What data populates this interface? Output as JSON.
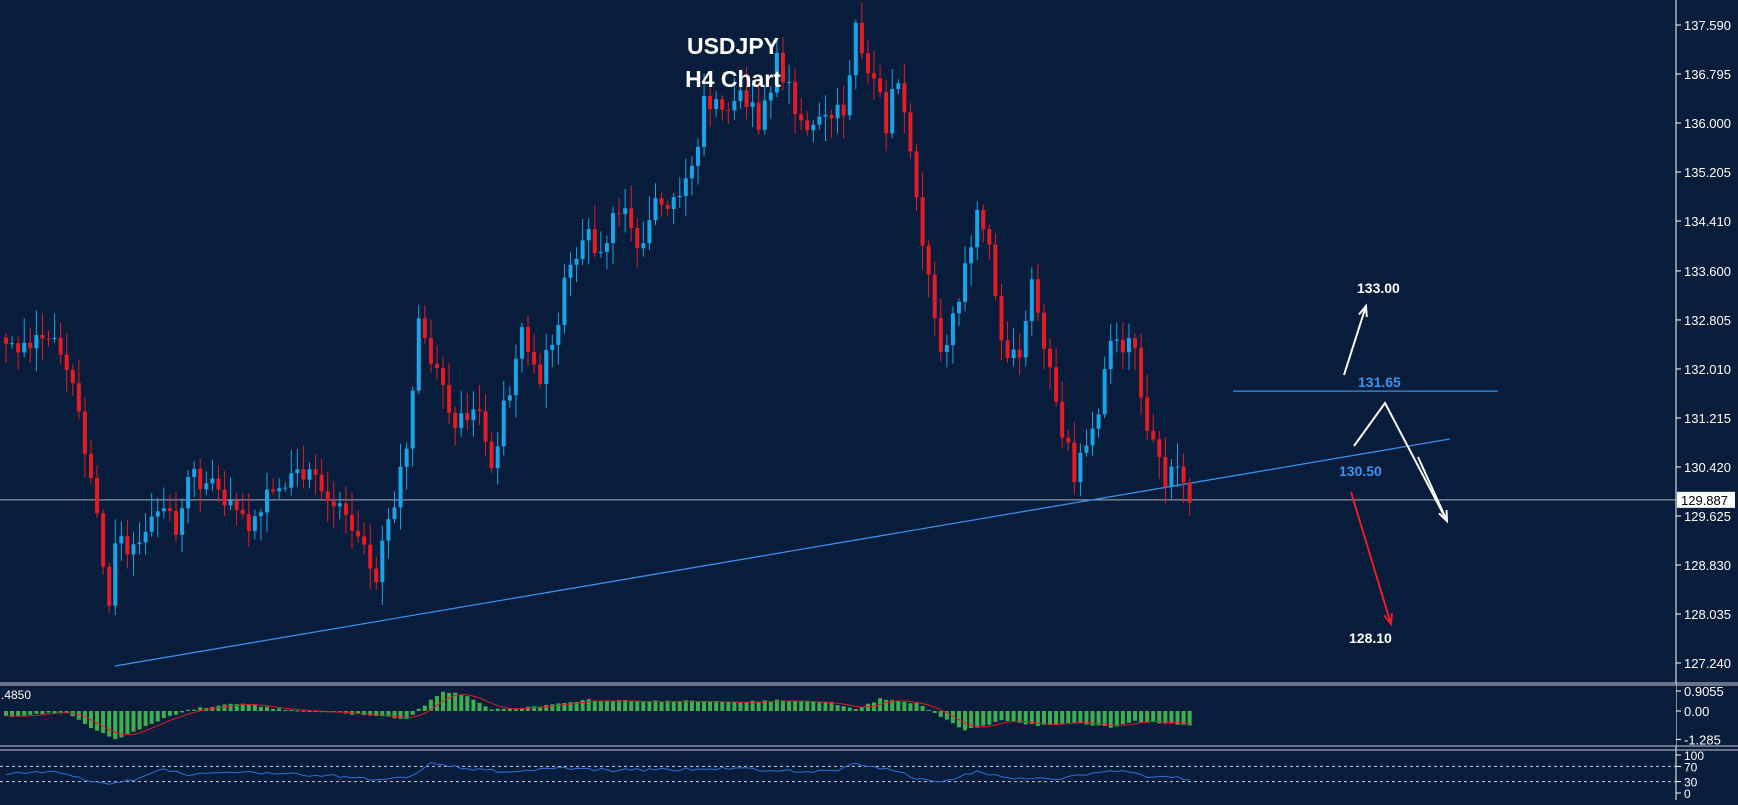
{
  "chart_data": {
    "type": "candlestick",
    "title": "USDJPY",
    "subtitle": "H4 Chart",
    "colors": {
      "background": "#071d3b",
      "bull": "#1aa3e6",
      "bear": "#e51c23",
      "trendline": "#3d8ee8",
      "annotation": "#ffffff",
      "annotation_bear": "#e81f26",
      "level_text": "#3d94f0",
      "macd_hist": "#3cb050",
      "macd_signal": "#e51c23",
      "rsi": "#3070d8",
      "axis_text": "#ffffff"
    },
    "price_axis": {
      "ticks": [
        "137.590",
        "136.795",
        "136.000",
        "135.205",
        "134.410",
        "133.600",
        "132.805",
        "132.010",
        "131.215",
        "130.420",
        "129.625",
        "128.830",
        "128.035",
        "127.240"
      ],
      "current_price": "129.887",
      "ylim": [
        126.8,
        138.2
      ]
    },
    "close_path": [
      [
        0,
        132.3
      ],
      [
        8,
        132.7
      ],
      [
        12,
        131.4
      ],
      [
        15,
        129.6
      ],
      [
        17,
        128.3
      ],
      [
        18,
        129.2
      ],
      [
        22,
        129.0
      ],
      [
        26,
        129.9
      ],
      [
        28,
        129.3
      ],
      [
        30,
        130.4
      ],
      [
        35,
        130.0
      ],
      [
        40,
        129.6
      ],
      [
        45,
        130.2
      ],
      [
        50,
        130.3
      ],
      [
        54,
        129.9
      ],
      [
        58,
        129.3
      ],
      [
        61,
        128.7
      ],
      [
        63,
        129.4
      ],
      [
        66,
        130.8
      ],
      [
        68,
        132.8
      ],
      [
        71,
        132.0
      ],
      [
        74,
        131.0
      ],
      [
        77,
        131.5
      ],
      [
        80,
        130.6
      ],
      [
        82,
        131.3
      ],
      [
        85,
        132.7
      ],
      [
        88,
        131.8
      ],
      [
        92,
        133.3
      ],
      [
        95,
        134.2
      ],
      [
        98,
        133.8
      ],
      [
        101,
        134.6
      ],
      [
        104,
        134.0
      ],
      [
        107,
        134.7
      ],
      [
        110,
        134.6
      ],
      [
        113,
        135.2
      ],
      [
        115,
        136.4
      ],
      [
        118,
        136.1
      ],
      [
        121,
        136.7
      ],
      [
        124,
        135.9
      ],
      [
        127,
        137.0
      ],
      [
        130,
        136.2
      ],
      [
        133,
        136.0
      ],
      [
        136,
        135.9
      ],
      [
        138,
        136.3
      ],
      [
        140,
        137.6
      ],
      [
        143,
        136.6
      ],
      [
        145,
        136.0
      ],
      [
        147,
        136.7
      ],
      [
        149,
        135.4
      ],
      [
        150,
        134.8
      ],
      [
        152,
        133.6
      ],
      [
        154,
        132.2
      ],
      [
        157,
        133.2
      ],
      [
        160,
        134.4
      ],
      [
        162,
        134.1
      ],
      [
        164,
        132.4
      ],
      [
        167,
        132.2
      ],
      [
        169,
        133.4
      ],
      [
        171,
        132.3
      ],
      [
        174,
        130.9
      ],
      [
        176,
        130.3
      ],
      [
        178,
        130.9
      ],
      [
        180,
        131.3
      ],
      [
        182,
        132.3
      ],
      [
        185,
        132.6
      ],
      [
        188,
        131.2
      ],
      [
        191,
        130.2
      ],
      [
        193,
        130.6
      ],
      [
        195,
        129.9
      ]
    ],
    "annotations": [
      {
        "label": "133.00",
        "direction": "up"
      },
      {
        "label": "131.65",
        "type": "level"
      },
      {
        "label": "130.50",
        "type": "level"
      },
      {
        "label": "128.10",
        "direction": "down"
      }
    ],
    "macd": {
      "label": ".4850",
      "ticks": [
        "0.9055",
        "0.00",
        "-1.285"
      ],
      "ylim": [
        -1.6,
        1.2
      ],
      "values_path": [
        [
          0,
          -0.25
        ],
        [
          10,
          -0.05
        ],
        [
          14,
          -0.8
        ],
        [
          18,
          -1.28
        ],
        [
          24,
          -0.55
        ],
        [
          30,
          0.05
        ],
        [
          38,
          0.35
        ],
        [
          46,
          0.05
        ],
        [
          58,
          -0.15
        ],
        [
          66,
          -0.35
        ],
        [
          72,
          0.9
        ],
        [
          76,
          0.7
        ],
        [
          80,
          0.1
        ],
        [
          88,
          0.2
        ],
        [
          96,
          0.5
        ],
        [
          104,
          0.45
        ],
        [
          112,
          0.45
        ],
        [
          120,
          0.4
        ],
        [
          128,
          0.5
        ],
        [
          136,
          0.35
        ],
        [
          140,
          0.05
        ],
        [
          144,
          0.55
        ],
        [
          150,
          0.35
        ],
        [
          154,
          -0.25
        ],
        [
          158,
          -0.85
        ],
        [
          164,
          -0.45
        ],
        [
          170,
          -0.65
        ],
        [
          176,
          -0.55
        ],
        [
          182,
          -0.75
        ],
        [
          186,
          -0.45
        ],
        [
          190,
          -0.55
        ],
        [
          195,
          -0.62
        ]
      ]
    },
    "rsi": {
      "ticks": [
        "100",
        "70",
        "30",
        "0"
      ],
      "ylim": [
        0,
        100
      ],
      "values_path": [
        [
          0,
          52
        ],
        [
          8,
          58
        ],
        [
          14,
          32
        ],
        [
          18,
          24
        ],
        [
          22,
          40
        ],
        [
          26,
          62
        ],
        [
          30,
          48
        ],
        [
          38,
          55
        ],
        [
          46,
          50
        ],
        [
          54,
          46
        ],
        [
          60,
          35
        ],
        [
          66,
          40
        ],
        [
          70,
          78
        ],
        [
          76,
          65
        ],
        [
          82,
          55
        ],
        [
          90,
          66
        ],
        [
          100,
          60
        ],
        [
          110,
          62
        ],
        [
          120,
          66
        ],
        [
          128,
          58
        ],
        [
          136,
          56
        ],
        [
          140,
          78
        ],
        [
          146,
          60
        ],
        [
          150,
          40
        ],
        [
          154,
          28
        ],
        [
          160,
          55
        ],
        [
          166,
          40
        ],
        [
          172,
          35
        ],
        [
          178,
          48
        ],
        [
          184,
          60
        ],
        [
          188,
          44
        ],
        [
          192,
          40
        ],
        [
          195,
          38
        ]
      ]
    }
  }
}
